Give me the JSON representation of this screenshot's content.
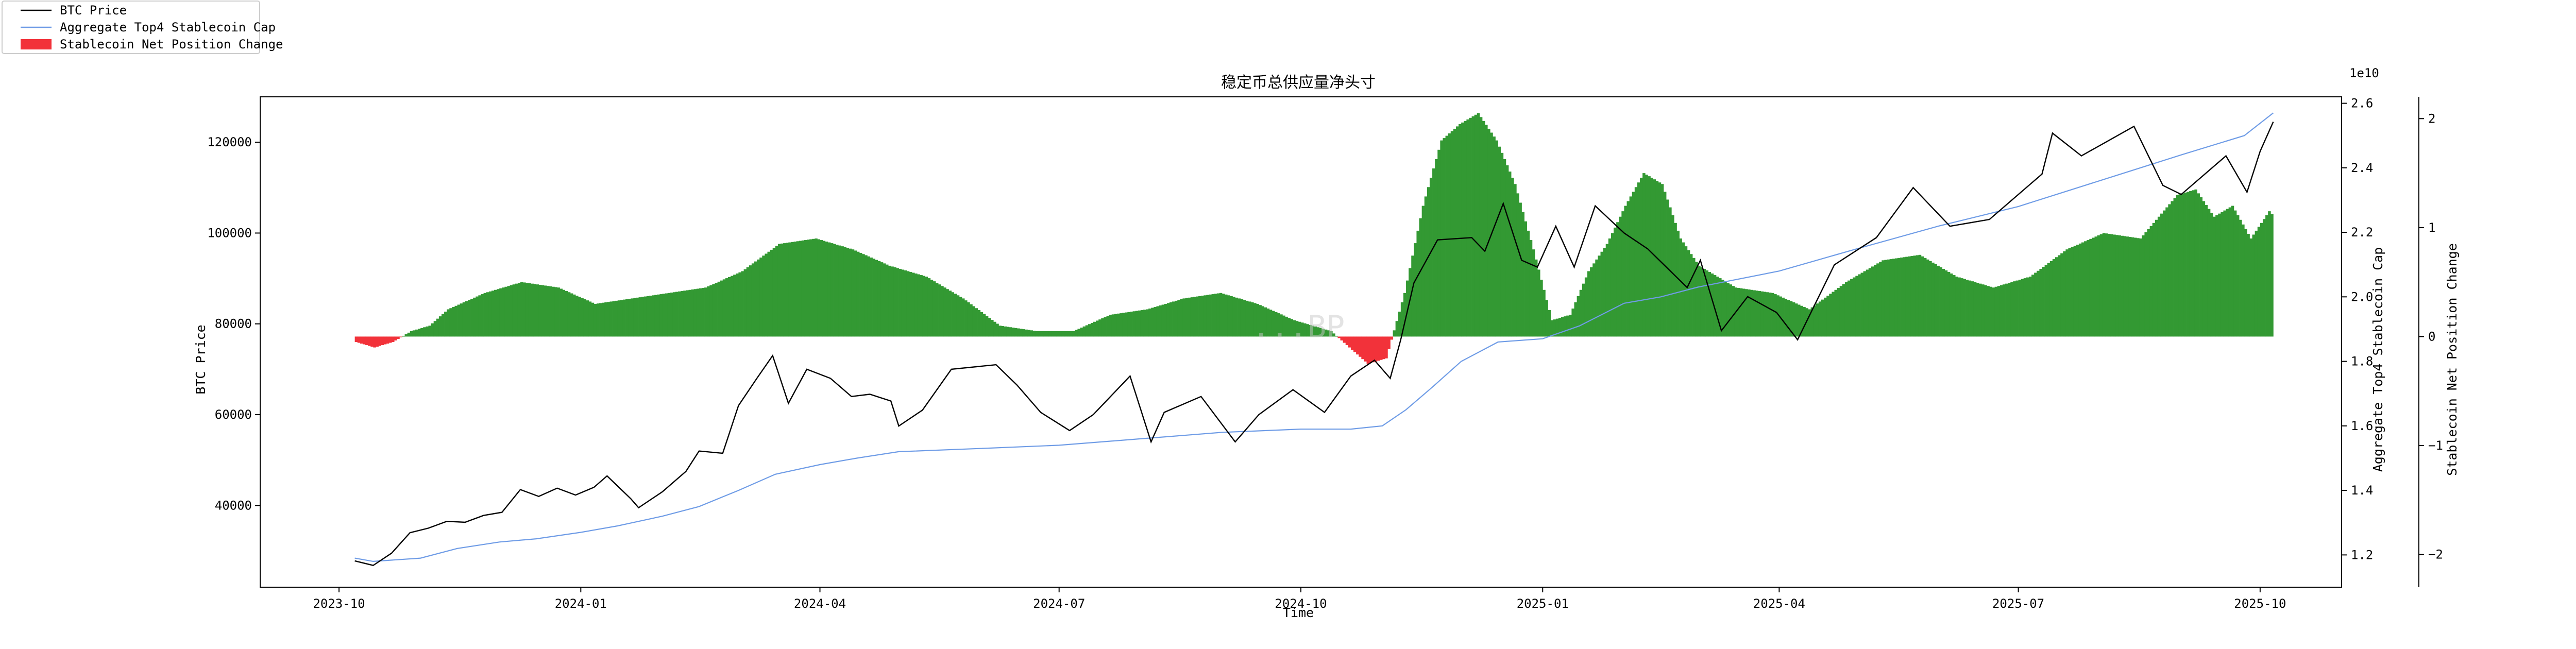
{
  "colors": {
    "btc_line": "#000000",
    "cap_line": "#6f9ce6",
    "positive_fill": "#339933",
    "negative_fill": "#f2323a"
  },
  "legend": {
    "items": [
      {
        "label": "BTC Price",
        "symbol": "line",
        "color": "#000000"
      },
      {
        "label": "Aggregate Top4 Stablecoin Cap",
        "symbol": "line",
        "color": "#6f9ce6"
      },
      {
        "label": "Stablecoin Net Position Change",
        "symbol": "patch",
        "color": "#f2323a"
      }
    ]
  },
  "watermark": {
    "text": "...BP"
  },
  "chart_data": {
    "type": "line",
    "title": "稳定币总供应量净头寸",
    "xlabel": "Time",
    "x_range": [
      "2023-09-01",
      "2025-11-01"
    ],
    "x_ticks": [
      "2023-10",
      "2024-01",
      "2024-04",
      "2024-07",
      "2024-10",
      "2025-01",
      "2025-04",
      "2025-07",
      "2025-10"
    ],
    "x_tick_dates": [
      "2023-10-01",
      "2024-01-01",
      "2024-04-01",
      "2024-07-01",
      "2024-10-01",
      "2025-01-01",
      "2025-04-01",
      "2025-07-01",
      "2025-10-01"
    ],
    "grid": false,
    "legend_placement": "top-left",
    "axes": {
      "left": {
        "label": "BTC Price",
        "range": [
          22000,
          130000
        ],
        "ticks": [
          "40000",
          "60000",
          "80000",
          "100000",
          "120000"
        ],
        "tick_values": [
          40000,
          60000,
          80000,
          100000,
          120000
        ]
      },
      "right1": {
        "label": "Aggregate Top4 Stablecoin Cap",
        "multiplier": "1e10",
        "range": [
          1.1,
          2.62
        ],
        "ticks": [
          "1.2",
          "1.4",
          "1.6",
          "1.8",
          "2.0",
          "2.2",
          "2.4",
          "2.6"
        ],
        "tick_values": [
          1.2,
          1.4,
          1.6,
          1.8,
          2.0,
          2.2,
          2.4,
          2.6
        ]
      },
      "right2": {
        "label": "Stablecoin Net Position Change",
        "range": [
          -2.3,
          2.2
        ],
        "ticks": [
          "−2",
          "−1",
          "0",
          "1",
          "2"
        ],
        "tick_values": [
          -2,
          -1,
          0,
          1,
          2
        ]
      }
    },
    "series": [
      {
        "name": "BTC Price",
        "axis": "left",
        "kind": "line",
        "points": [
          [
            "2023-10-07",
            27800
          ],
          [
            "2023-10-14",
            26800
          ],
          [
            "2023-10-21",
            29500
          ],
          [
            "2023-10-28",
            34000
          ],
          [
            "2023-11-04",
            35000
          ],
          [
            "2023-11-11",
            36500
          ],
          [
            "2023-11-18",
            36300
          ],
          [
            "2023-11-25",
            37800
          ],
          [
            "2023-12-02",
            38500
          ],
          [
            "2023-12-09",
            43500
          ],
          [
            "2023-12-16",
            42000
          ],
          [
            "2023-12-23",
            43800
          ],
          [
            "2023-12-30",
            42300
          ],
          [
            "2024-01-06",
            44000
          ],
          [
            "2024-01-11",
            46500
          ],
          [
            "2024-01-20",
            41500
          ],
          [
            "2024-01-23",
            39500
          ],
          [
            "2024-02-01",
            43000
          ],
          [
            "2024-02-10",
            47500
          ],
          [
            "2024-02-15",
            52000
          ],
          [
            "2024-02-24",
            51500
          ],
          [
            "2024-03-01",
            62000
          ],
          [
            "2024-03-08",
            68000
          ],
          [
            "2024-03-14",
            73000
          ],
          [
            "2024-03-20",
            62500
          ],
          [
            "2024-03-27",
            70000
          ],
          [
            "2024-04-05",
            68000
          ],
          [
            "2024-04-13",
            64000
          ],
          [
            "2024-04-20",
            64500
          ],
          [
            "2024-04-28",
            63000
          ],
          [
            "2024-05-01",
            57500
          ],
          [
            "2024-05-10",
            61000
          ],
          [
            "2024-05-21",
            70000
          ],
          [
            "2024-06-07",
            71000
          ],
          [
            "2024-06-15",
            66500
          ],
          [
            "2024-06-24",
            60500
          ],
          [
            "2024-07-05",
            56500
          ],
          [
            "2024-07-14",
            60000
          ],
          [
            "2024-07-28",
            68500
          ],
          [
            "2024-08-05",
            54000
          ],
          [
            "2024-08-10",
            60500
          ],
          [
            "2024-08-24",
            64000
          ],
          [
            "2024-09-06",
            54000
          ],
          [
            "2024-09-15",
            60000
          ],
          [
            "2024-09-28",
            65500
          ],
          [
            "2024-10-10",
            60500
          ],
          [
            "2024-10-20",
            68500
          ],
          [
            "2024-10-29",
            72000
          ],
          [
            "2024-11-04",
            68000
          ],
          [
            "2024-11-08",
            76500
          ],
          [
            "2024-11-13",
            89000
          ],
          [
            "2024-11-22",
            98500
          ],
          [
            "2024-12-05",
            99000
          ],
          [
            "2024-12-10",
            96000
          ],
          [
            "2024-12-17",
            106500
          ],
          [
            "2024-12-24",
            94000
          ],
          [
            "2024-12-30",
            92500
          ],
          [
            "2025-01-06",
            101500
          ],
          [
            "2025-01-13",
            92500
          ],
          [
            "2025-01-21",
            106000
          ],
          [
            "2025-02-01",
            100000
          ],
          [
            "2025-02-10",
            96500
          ],
          [
            "2025-02-25",
            88000
          ],
          [
            "2025-03-02",
            94000
          ],
          [
            "2025-03-10",
            78500
          ],
          [
            "2025-03-20",
            86000
          ],
          [
            "2025-03-31",
            82500
          ],
          [
            "2025-04-08",
            76500
          ],
          [
            "2025-04-22",
            93000
          ],
          [
            "2025-05-08",
            99000
          ],
          [
            "2025-05-22",
            110000
          ],
          [
            "2025-06-05",
            101500
          ],
          [
            "2025-06-20",
            103000
          ],
          [
            "2025-07-10",
            113000
          ],
          [
            "2025-07-14",
            122000
          ],
          [
            "2025-07-25",
            117000
          ],
          [
            "2025-08-14",
            123500
          ],
          [
            "2025-08-25",
            110500
          ],
          [
            "2025-09-01",
            108500
          ],
          [
            "2025-09-18",
            117000
          ],
          [
            "2025-09-26",
            109000
          ],
          [
            "2025-10-01",
            118000
          ],
          [
            "2025-10-06",
            124500
          ]
        ]
      },
      {
        "name": "Aggregate Top4 Stablecoin Cap",
        "axis": "right1",
        "kind": "line",
        "points": [
          [
            "2023-10-07",
            1.19
          ],
          [
            "2023-10-14",
            1.18
          ],
          [
            "2023-11-01",
            1.19
          ],
          [
            "2023-11-15",
            1.22
          ],
          [
            "2023-12-01",
            1.24
          ],
          [
            "2023-12-15",
            1.25
          ],
          [
            "2024-01-01",
            1.27
          ],
          [
            "2024-01-15",
            1.29
          ],
          [
            "2024-02-01",
            1.32
          ],
          [
            "2024-02-15",
            1.35
          ],
          [
            "2024-03-01",
            1.4
          ],
          [
            "2024-03-15",
            1.45
          ],
          [
            "2024-04-01",
            1.48
          ],
          [
            "2024-04-15",
            1.5
          ],
          [
            "2024-05-01",
            1.52
          ],
          [
            "2024-06-01",
            1.53
          ],
          [
            "2024-07-01",
            1.54
          ],
          [
            "2024-08-01",
            1.56
          ],
          [
            "2024-09-01",
            1.58
          ],
          [
            "2024-10-01",
            1.59
          ],
          [
            "2024-10-20",
            1.59
          ],
          [
            "2024-11-01",
            1.6
          ],
          [
            "2024-11-10",
            1.65
          ],
          [
            "2024-11-20",
            1.72
          ],
          [
            "2024-12-01",
            1.8
          ],
          [
            "2024-12-15",
            1.86
          ],
          [
            "2025-01-01",
            1.87
          ],
          [
            "2025-01-15",
            1.91
          ],
          [
            "2025-02-01",
            1.98
          ],
          [
            "2025-02-15",
            2.0
          ],
          [
            "2025-03-01",
            2.03
          ],
          [
            "2025-04-01",
            2.08
          ],
          [
            "2025-05-01",
            2.15
          ],
          [
            "2025-06-01",
            2.22
          ],
          [
            "2025-07-01",
            2.28
          ],
          [
            "2025-08-01",
            2.36
          ],
          [
            "2025-09-01",
            2.44
          ],
          [
            "2025-09-25",
            2.5
          ],
          [
            "2025-10-06",
            2.57
          ]
        ]
      },
      {
        "name": "Stablecoin Net Position Change",
        "axis": "right2",
        "kind": "bar",
        "points": [
          [
            "2023-10-07",
            -0.05
          ],
          [
            "2023-10-14",
            -0.1
          ],
          [
            "2023-10-21",
            -0.05
          ],
          [
            "2023-10-28",
            0.05
          ],
          [
            "2023-11-04",
            0.1
          ],
          [
            "2023-11-11",
            0.25
          ],
          [
            "2023-11-25",
            0.4
          ],
          [
            "2023-12-09",
            0.5
          ],
          [
            "2023-12-23",
            0.45
          ],
          [
            "2024-01-06",
            0.3
          ],
          [
            "2024-01-20",
            0.35
          ],
          [
            "2024-02-03",
            0.4
          ],
          [
            "2024-02-17",
            0.45
          ],
          [
            "2024-03-02",
            0.6
          ],
          [
            "2024-03-16",
            0.85
          ],
          [
            "2024-03-30",
            0.9
          ],
          [
            "2024-04-13",
            0.8
          ],
          [
            "2024-04-27",
            0.65
          ],
          [
            "2024-05-11",
            0.55
          ],
          [
            "2024-05-25",
            0.35
          ],
          [
            "2024-06-08",
            0.1
          ],
          [
            "2024-06-22",
            0.05
          ],
          [
            "2024-07-06",
            0.05
          ],
          [
            "2024-07-20",
            0.2
          ],
          [
            "2024-08-03",
            0.25
          ],
          [
            "2024-08-17",
            0.35
          ],
          [
            "2024-08-31",
            0.4
          ],
          [
            "2024-09-14",
            0.3
          ],
          [
            "2024-09-28",
            0.15
          ],
          [
            "2024-10-12",
            0.05
          ],
          [
            "2024-10-26",
            -0.25
          ],
          [
            "2024-11-02",
            -0.2
          ],
          [
            "2024-11-09",
            0.4
          ],
          [
            "2024-11-16",
            1.2
          ],
          [
            "2024-11-23",
            1.8
          ],
          [
            "2024-11-30",
            1.95
          ],
          [
            "2024-12-07",
            2.05
          ],
          [
            "2024-12-14",
            1.8
          ],
          [
            "2024-12-21",
            1.4
          ],
          [
            "2024-12-28",
            0.8
          ],
          [
            "2025-01-04",
            0.15
          ],
          [
            "2025-01-11",
            0.2
          ],
          [
            "2025-01-18",
            0.6
          ],
          [
            "2025-01-25",
            0.85
          ],
          [
            "2025-02-01",
            1.2
          ],
          [
            "2025-02-08",
            1.5
          ],
          [
            "2025-02-15",
            1.4
          ],
          [
            "2025-02-22",
            0.9
          ],
          [
            "2025-03-01",
            0.65
          ],
          [
            "2025-03-15",
            0.45
          ],
          [
            "2025-03-29",
            0.4
          ],
          [
            "2025-04-12",
            0.25
          ],
          [
            "2025-04-26",
            0.5
          ],
          [
            "2025-05-10",
            0.7
          ],
          [
            "2025-05-24",
            0.75
          ],
          [
            "2025-06-07",
            0.55
          ],
          [
            "2025-06-21",
            0.45
          ],
          [
            "2025-07-05",
            0.55
          ],
          [
            "2025-07-19",
            0.8
          ],
          [
            "2025-08-02",
            0.95
          ],
          [
            "2025-08-16",
            0.9
          ],
          [
            "2025-08-30",
            1.3
          ],
          [
            "2025-09-06",
            1.35
          ],
          [
            "2025-09-13",
            1.1
          ],
          [
            "2025-09-20",
            1.2
          ],
          [
            "2025-09-27",
            0.9
          ],
          [
            "2025-10-04",
            1.15
          ],
          [
            "2025-10-06",
            1.1
          ]
        ]
      }
    ]
  }
}
